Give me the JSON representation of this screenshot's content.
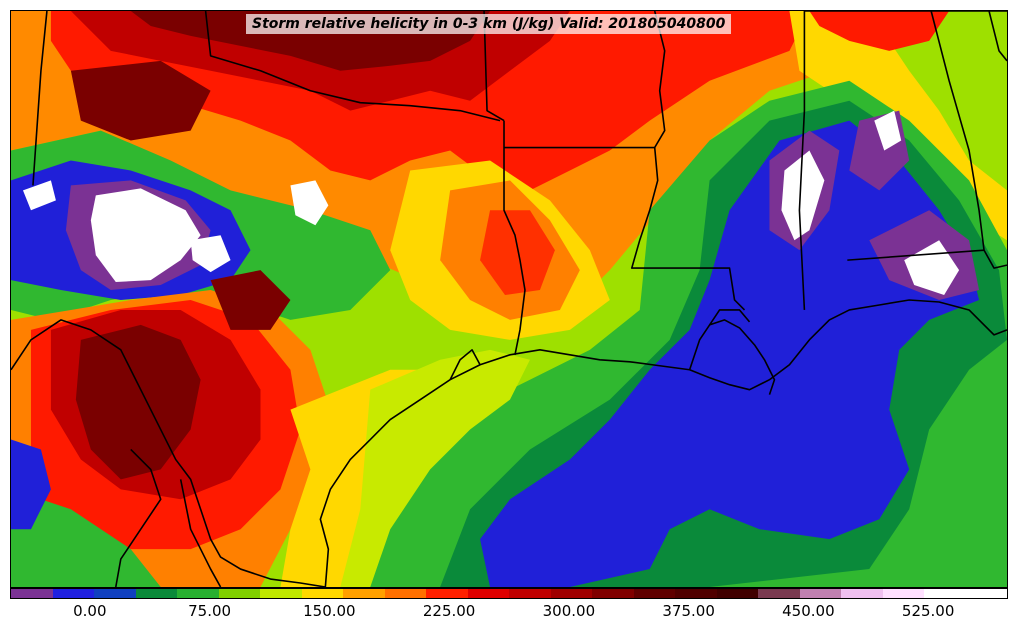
{
  "title": "Storm relative helicity in 0-3 km (J/kg) Valid: 201805040800",
  "colorbar": {
    "colors": [
      "#7b3294",
      "#2020e0",
      "#1040c0",
      "#0a8a3a",
      "#28b030",
      "#80d000",
      "#c0e800",
      "#ffd800",
      "#ffa000",
      "#ff7000",
      "#ff2000",
      "#e00000",
      "#c00000",
      "#a00000",
      "#800000",
      "#600000",
      "#500000",
      "#400000",
      "#7a3a50",
      "#c080b0",
      "#f0c0f0",
      "#ffe0ff",
      "#ffffff",
      "#ffffff"
    ],
    "tick_labels": [
      "0.00",
      "75.00",
      "150.00",
      "225.00",
      "300.00",
      "375.00",
      "450.00",
      "525.00"
    ],
    "tick_values": [
      0,
      75,
      150,
      225,
      300,
      375,
      450,
      525
    ],
    "range": [
      -50,
      575
    ]
  },
  "palette": {
    "purple": "#7b3294",
    "blue": "#2020d8",
    "dark_green": "#0a8a3a",
    "green": "#30b830",
    "lime": "#9ee000",
    "yellow_green": "#c8ea00",
    "yellow": "#ffd800",
    "orange": "#ff8000",
    "red": "#ff1a00",
    "dark_red": "#c00000",
    "maroon": "#7a0000",
    "white": "#ffffff"
  }
}
